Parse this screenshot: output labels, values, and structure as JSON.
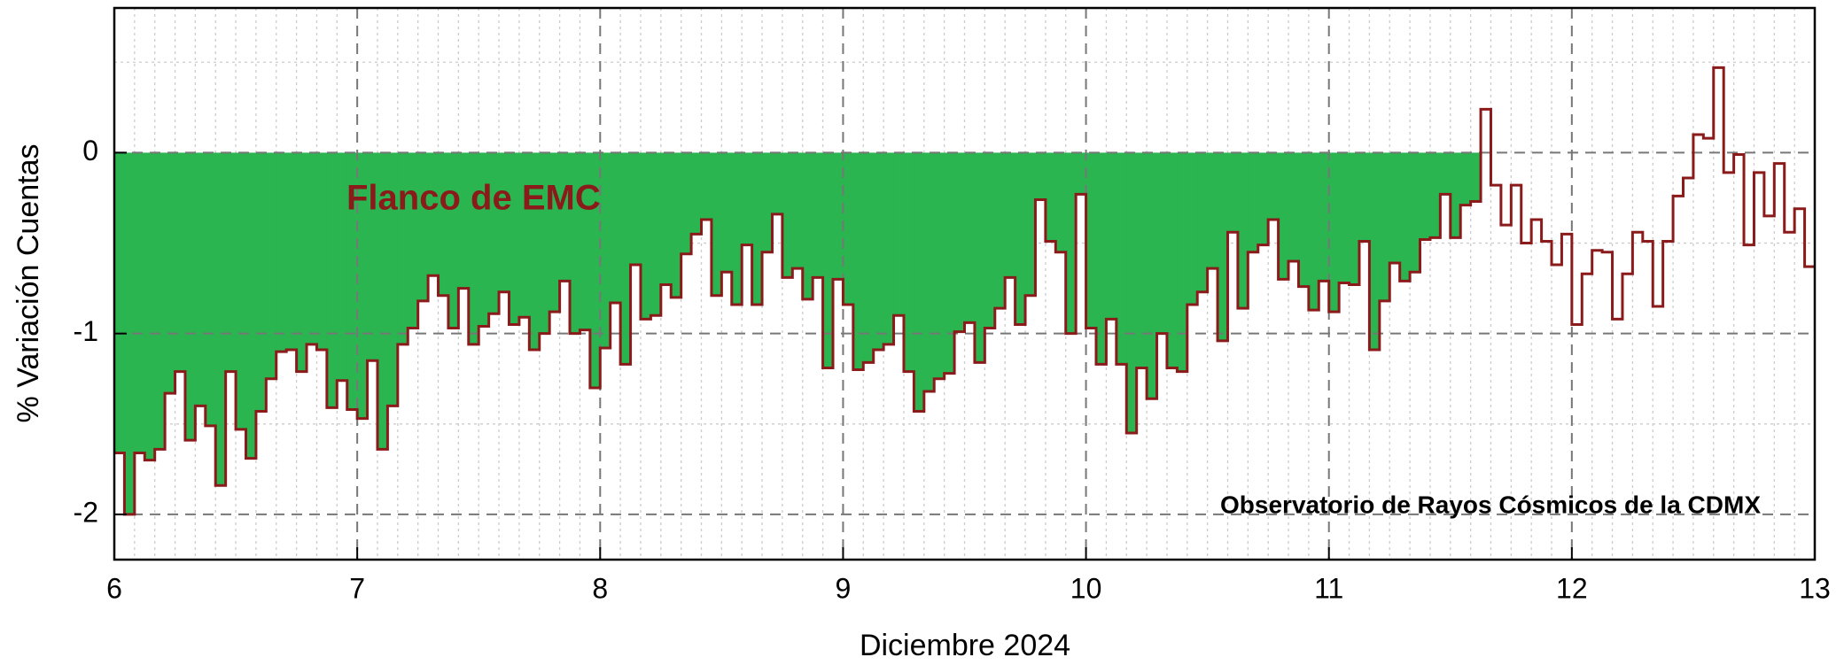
{
  "chart_data": {
    "type": "step",
    "xlabel": "Diciembre 2024",
    "ylabel": "% Variación Cuentas",
    "xlim": [
      6,
      13
    ],
    "xticks": [
      6,
      7,
      8,
      9,
      10,
      11,
      12,
      13
    ],
    "ylim": [
      -2.25,
      0.8
    ],
    "yticks": [
      0,
      -1,
      -2
    ],
    "grid": true,
    "minor_grid": true,
    "color": "#8b1a1a",
    "shade": {
      "from": 6,
      "to": 11.625,
      "color": "#2ab550"
    },
    "annotations": [
      {
        "text": "Flanco de EMC",
        "color": "#8b1a1a"
      },
      {
        "text": "Observatorio de Rayos Cósmicos de la CDMX",
        "color": "#000000"
      }
    ],
    "values": [
      -1.66,
      -2.0,
      -1.66,
      -1.7,
      -1.64,
      -1.33,
      -1.21,
      -1.59,
      -1.4,
      -1.51,
      -1.84,
      -1.21,
      -1.53,
      -1.69,
      -1.43,
      -1.25,
      -1.1,
      -1.09,
      -1.21,
      -1.06,
      -1.09,
      -1.41,
      -1.26,
      -1.42,
      -1.47,
      -1.15,
      -1.64,
      -1.4,
      -1.06,
      -0.97,
      -0.82,
      -0.68,
      -0.79,
      -0.97,
      -0.75,
      -1.06,
      -0.96,
      -0.89,
      -0.77,
      -0.95,
      -0.91,
      -1.09,
      -1.0,
      -0.88,
      -0.71,
      -1.0,
      -0.98,
      -1.3,
      -1.08,
      -0.83,
      -1.17,
      -0.62,
      -0.92,
      -0.9,
      -0.73,
      -0.8,
      -0.56,
      -0.45,
      -0.37,
      -0.79,
      -0.66,
      -0.84,
      -0.51,
      -0.84,
      -0.55,
      -0.34,
      -0.69,
      -0.64,
      -0.81,
      -0.69,
      -1.19,
      -0.7,
      -0.84,
      -1.2,
      -1.16,
      -1.09,
      -1.06,
      -0.9,
      -1.21,
      -1.43,
      -1.32,
      -1.25,
      -1.22,
      -0.99,
      -0.94,
      -1.16,
      -0.97,
      -0.86,
      -0.69,
      -0.95,
      -0.79,
      -0.26,
      -0.49,
      -0.55,
      -1.0,
      -0.23,
      -0.97,
      -1.17,
      -0.92,
      -1.17,
      -1.55,
      -1.19,
      -1.36,
      -1.0,
      -1.19,
      -1.21,
      -0.84,
      -0.77,
      -0.64,
      -1.04,
      -0.44,
      -0.86,
      -0.55,
      -0.51,
      -0.37,
      -0.7,
      -0.6,
      -0.74,
      -0.87,
      -0.71,
      -0.88,
      -0.72,
      -0.73,
      -0.49,
      -1.09,
      -0.82,
      -0.61,
      -0.71,
      -0.66,
      -0.48,
      -0.47,
      -0.23,
      -0.47,
      -0.29,
      -0.27,
      0.24,
      -0.18,
      -0.4,
      -0.18,
      -0.5,
      -0.37,
      -0.49,
      -0.62,
      -0.45,
      -0.95,
      -0.67,
      -0.54,
      -0.55,
      -0.92,
      -0.67,
      -0.44,
      -0.49,
      -0.85,
      -0.49,
      -0.24,
      -0.14,
      0.1,
      0.08,
      0.47,
      -0.11,
      -0.01,
      -0.51,
      -0.11,
      -0.35,
      -0.06,
      -0.44,
      -0.31,
      -0.63
    ]
  }
}
